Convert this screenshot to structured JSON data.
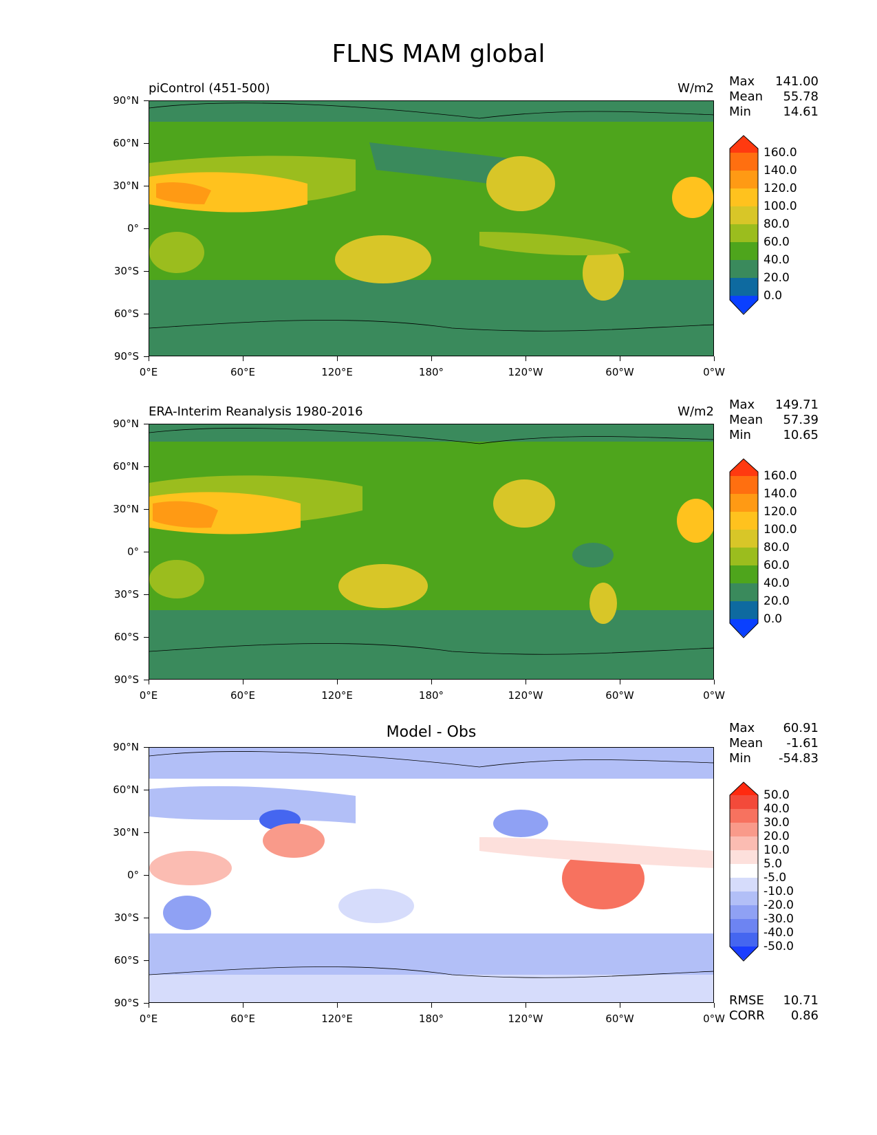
{
  "figure": {
    "title": "FLNS MAM global"
  },
  "axes": {
    "y_labels": [
      "90°N",
      "60°N",
      "30°N",
      "0°",
      "30°S",
      "60°S",
      "90°S"
    ],
    "x_labels": [
      "0°E",
      "60°E",
      "120°E",
      "180°",
      "120°W",
      "60°W",
      "0°W"
    ]
  },
  "panels": [
    {
      "title": "piControl (451-500)",
      "units": "W/m2",
      "stats": {
        "max_label": "Max",
        "max": "141.00",
        "mean_label": "Mean",
        "mean": "55.78",
        "min_label": "Min",
        "min": "14.61"
      },
      "colorbar": {
        "labels": [
          "160.0",
          "140.0",
          "120.0",
          "100.0",
          "80.0",
          "60.0",
          "40.0",
          "20.0",
          "0.0"
        ],
        "colors": [
          "#ff3a10",
          "#ff6f10",
          "#ff9a14",
          "#ffc21e",
          "#d8c628",
          "#9bbd1e",
          "#4ea51c",
          "#3a8a5c",
          "#0e6aa0",
          "#0a40ff"
        ]
      }
    },
    {
      "title": "ERA-Interim Reanalysis 1980-2016",
      "units": "W/m2",
      "stats": {
        "max_label": "Max",
        "max": "149.71",
        "mean_label": "Mean",
        "mean": "57.39",
        "min_label": "Min",
        "min": "10.65"
      },
      "colorbar": {
        "labels": [
          "160.0",
          "140.0",
          "120.0",
          "100.0",
          "80.0",
          "60.0",
          "40.0",
          "20.0",
          "0.0"
        ],
        "colors": [
          "#ff3a10",
          "#ff6f10",
          "#ff9a14",
          "#ffc21e",
          "#d8c628",
          "#9bbd1e",
          "#4ea51c",
          "#3a8a5c",
          "#0e6aa0",
          "#0a40ff"
        ]
      }
    },
    {
      "title": "Model - Obs",
      "units": "",
      "stats": {
        "max_label": "Max",
        "max": "60.91",
        "mean_label": "Mean",
        "mean": "-1.61",
        "min_label": "Min",
        "min": "-54.83"
      },
      "metrics": {
        "rmse_label": "RMSE",
        "rmse": "10.71",
        "corr_label": "CORR",
        "corr": "0.86"
      },
      "colorbar": {
        "labels": [
          "50.0",
          "40.0",
          "30.0",
          "20.0",
          "10.0",
          "5.0",
          "-5.0",
          "-10.0",
          "-20.0",
          "-30.0",
          "-40.0",
          "-50.0"
        ],
        "colors": [
          "#ff2a10",
          "#f34a3a",
          "#f7725f",
          "#f99a8a",
          "#fbbcb2",
          "#fde0dc",
          "#ffffff",
          "#d6dcfb",
          "#b2bff7",
          "#8fa1f4",
          "#6d84f2",
          "#4566f0",
          "#1a3dff"
        ]
      }
    }
  ],
  "chart_data": [
    {
      "type": "heatmap",
      "title": "piControl (451-500)",
      "units": "W/m2",
      "xlabel": "",
      "ylabel": "",
      "xlim": [
        0,
        360
      ],
      "ylim": [
        -90,
        90
      ],
      "x_ticks": [
        "0°E",
        "60°E",
        "120°E",
        "180°",
        "120°W",
        "60°W",
        "0°W"
      ],
      "y_ticks": [
        "90°N",
        "60°N",
        "30°N",
        "0°",
        "30°S",
        "60°S",
        "90°S"
      ],
      "levels": [
        0,
        20,
        40,
        60,
        80,
        100,
        120,
        140,
        160
      ],
      "max": 141.0,
      "mean": 55.78,
      "min": 14.61
    },
    {
      "type": "heatmap",
      "title": "ERA-Interim Reanalysis 1980-2016",
      "units": "W/m2",
      "xlabel": "",
      "ylabel": "",
      "xlim": [
        0,
        360
      ],
      "ylim": [
        -90,
        90
      ],
      "x_ticks": [
        "0°E",
        "60°E",
        "120°E",
        "180°",
        "120°W",
        "60°W",
        "0°W"
      ],
      "y_ticks": [
        "90°N",
        "60°N",
        "30°N",
        "0°",
        "30°S",
        "60°S",
        "90°S"
      ],
      "levels": [
        0,
        20,
        40,
        60,
        80,
        100,
        120,
        140,
        160
      ],
      "max": 149.71,
      "mean": 57.39,
      "min": 10.65
    },
    {
      "type": "heatmap",
      "title": "Model - Obs",
      "xlabel": "",
      "ylabel": "",
      "xlim": [
        0,
        360
      ],
      "ylim": [
        -90,
        90
      ],
      "x_ticks": [
        "0°E",
        "60°E",
        "120°E",
        "180°",
        "120°W",
        "60°W",
        "0°W"
      ],
      "y_ticks": [
        "90°N",
        "60°N",
        "30°N",
        "0°",
        "30°S",
        "60°S",
        "90°S"
      ],
      "levels": [
        -50,
        -40,
        -30,
        -20,
        -10,
        -5,
        5,
        10,
        20,
        30,
        40,
        50
      ],
      "max": 60.91,
      "mean": -1.61,
      "min": -54.83,
      "rmse": 10.71,
      "corr": 0.86
    }
  ]
}
